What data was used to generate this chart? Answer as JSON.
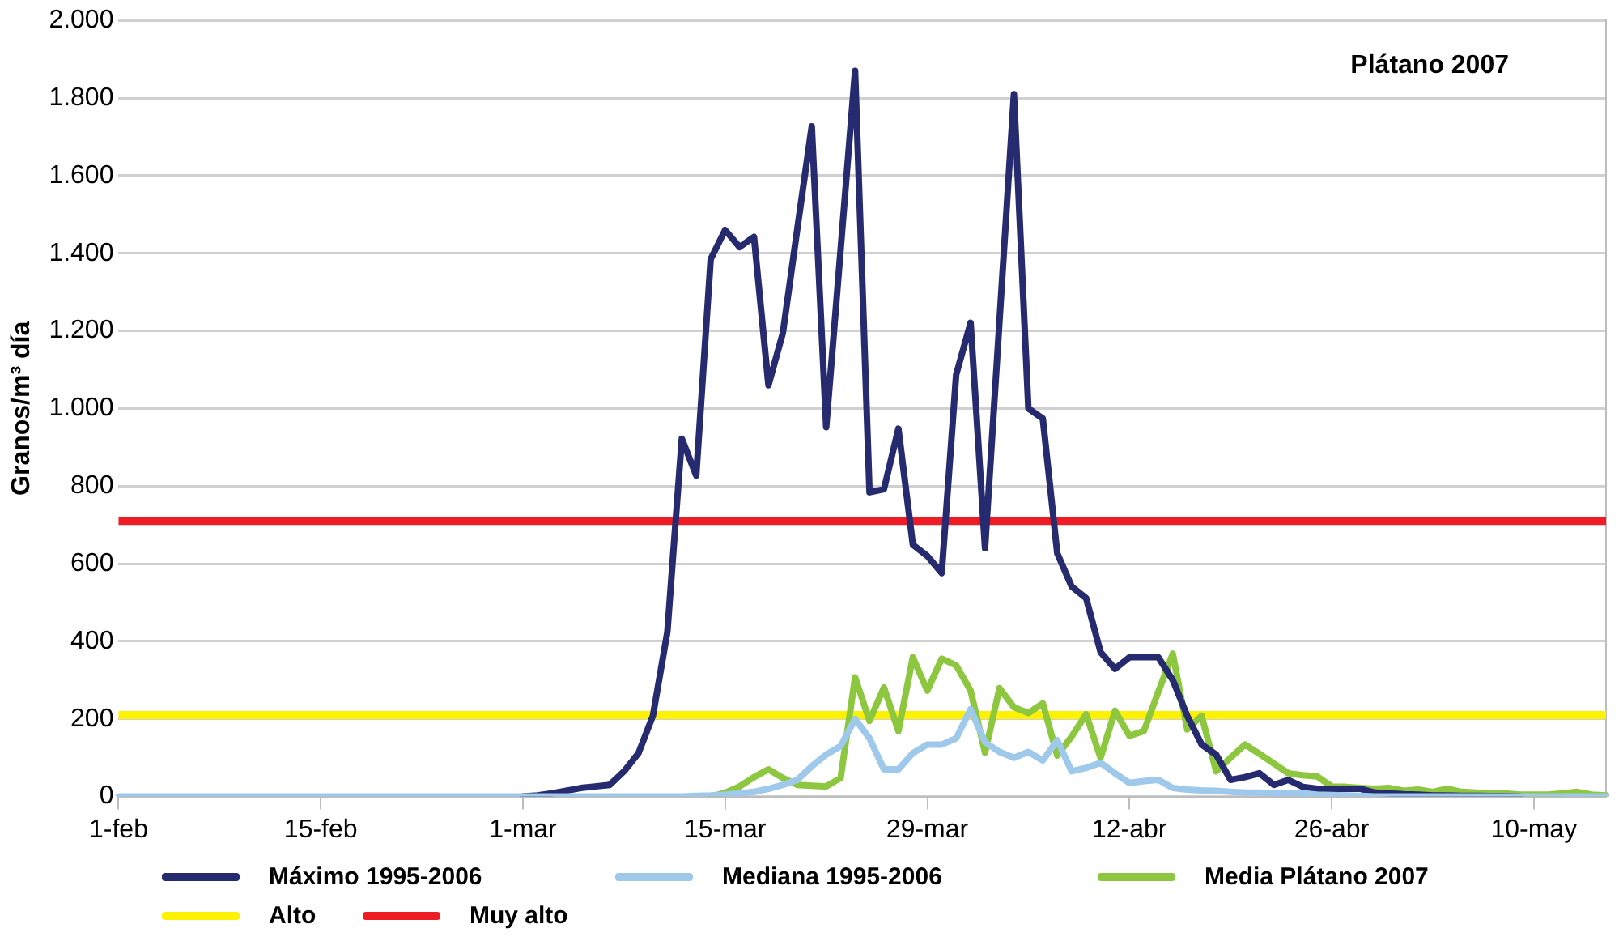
{
  "chart_data": {
    "type": "line",
    "annotations": [
      "Plátano 2007"
    ],
    "ylabel": "Granos/m³ día",
    "categories": [
      "1-feb",
      null,
      null,
      null,
      null,
      null,
      null,
      null,
      null,
      null,
      null,
      null,
      null,
      null,
      "15-feb",
      null,
      null,
      null,
      null,
      null,
      null,
      null,
      null,
      null,
      null,
      null,
      null,
      null,
      "1-mar",
      null,
      null,
      null,
      null,
      null,
      null,
      null,
      null,
      null,
      null,
      null,
      null,
      null,
      "15-mar",
      null,
      null,
      null,
      null,
      null,
      null,
      null,
      null,
      null,
      null,
      null,
      null,
      null,
      "29-mar",
      null,
      null,
      null,
      null,
      null,
      null,
      null,
      null,
      null,
      null,
      null,
      null,
      null,
      "12-abr",
      null,
      null,
      null,
      null,
      null,
      null,
      null,
      null,
      null,
      null,
      null,
      null,
      null,
      "26-abr",
      null,
      null,
      null,
      null,
      null,
      null,
      null,
      null,
      null,
      null,
      null,
      null,
      null,
      "10-may",
      null,
      null,
      null,
      null,
      null
    ],
    "series": [
      {
        "name": "Máximo 1995-2006",
        "color": "#262a6e",
        "values": [
          null,
          null,
          null,
          null,
          null,
          null,
          null,
          null,
          null,
          null,
          null,
          null,
          null,
          null,
          null,
          null,
          null,
          null,
          null,
          null,
          null,
          null,
          null,
          null,
          null,
          null,
          null,
          null,
          0,
          3,
          8,
          15,
          22,
          26,
          30,
          65,
          112,
          208,
          424,
          922,
          827,
          1385,
          1460,
          1416,
          1442,
          1060,
          1195,
          1463,
          1727,
          952,
          1410,
          1870,
          784,
          792,
          948,
          649,
          620,
          576,
          1087,
          1221,
          640,
          1225,
          1810,
          1000,
          974,
          627,
          541,
          511,
          372,
          329,
          359,
          359,
          359,
          300,
          208,
          134,
          108,
          43,
          50,
          60,
          30,
          43,
          25,
          20,
          20,
          20,
          20,
          10,
          8,
          6,
          5,
          3,
          3,
          2,
          2,
          1,
          1,
          0,
          null,
          null,
          null,
          null,
          null,
          null
        ]
      },
      {
        "name": "Mediana 1995-2006",
        "color": "#9ec9ea",
        "values": [
          0,
          0,
          0,
          0,
          0,
          0,
          0,
          0,
          0,
          0,
          0,
          0,
          0,
          0,
          0,
          0,
          0,
          0,
          0,
          0,
          0,
          0,
          0,
          0,
          0,
          0,
          0,
          0,
          0,
          0,
          0,
          0,
          0,
          0,
          0,
          0,
          0,
          0,
          0,
          0,
          2,
          3,
          5,
          8,
          12,
          20,
          30,
          43,
          78,
          108,
          130,
          200,
          150,
          70,
          70,
          112,
          134,
          134,
          150,
          225,
          140,
          115,
          100,
          115,
          93,
          145,
          65,
          74,
          87,
          60,
          35,
          40,
          43,
          22,
          18,
          16,
          15,
          12,
          10,
          10,
          8,
          8,
          8,
          5,
          4,
          3,
          2,
          0,
          0,
          0,
          0,
          0,
          0,
          0,
          0,
          0,
          0,
          0,
          0,
          0,
          0,
          0,
          0,
          0
        ]
      },
      {
        "name": "Media Plátano 2007",
        "color": "#8dc63f",
        "values": [
          null,
          null,
          null,
          null,
          null,
          null,
          null,
          null,
          null,
          null,
          null,
          null,
          null,
          null,
          null,
          null,
          null,
          null,
          null,
          null,
          null,
          null,
          null,
          null,
          null,
          null,
          null,
          null,
          null,
          null,
          null,
          null,
          null,
          null,
          null,
          null,
          null,
          null,
          null,
          null,
          null,
          0,
          10,
          26,
          50,
          70,
          48,
          30,
          28,
          26,
          48,
          307,
          195,
          281,
          169,
          359,
          273,
          355,
          338,
          273,
          113,
          279,
          230,
          215,
          240,
          106,
          155,
          212,
          100,
          221,
          156,
          169,
          270,
          368,
          173,
          208,
          65,
          100,
          134,
          110,
          85,
          60,
          55,
          52,
          26,
          25,
          22,
          20,
          22,
          15,
          18,
          12,
          20,
          12,
          10,
          8,
          8,
          5,
          5,
          5,
          8,
          12,
          5,
          3
        ]
      }
    ],
    "ref_lines": [
      {
        "axis": "y",
        "value": 210,
        "label": "Alto",
        "color": "#fff200"
      },
      {
        "axis": "y",
        "value": 710,
        "label": "Muy alto",
        "color": "#ee1c25"
      }
    ],
    "ylim": [
      0,
      2000
    ],
    "yticks": [
      0,
      200,
      400,
      600,
      800,
      {
        "value": 1000,
        "label": "1.000"
      },
      {
        "value": 1200,
        "label": "1.200"
      },
      {
        "value": 1400,
        "label": "1.400"
      },
      {
        "value": 1600,
        "label": "1.600"
      },
      {
        "value": 1800,
        "label": "1.800"
      },
      {
        "value": 2000,
        "label": "2.000"
      }
    ],
    "grid": "y",
    "legend": "bottom",
    "marker": "none",
    "line_style": "solid"
  }
}
